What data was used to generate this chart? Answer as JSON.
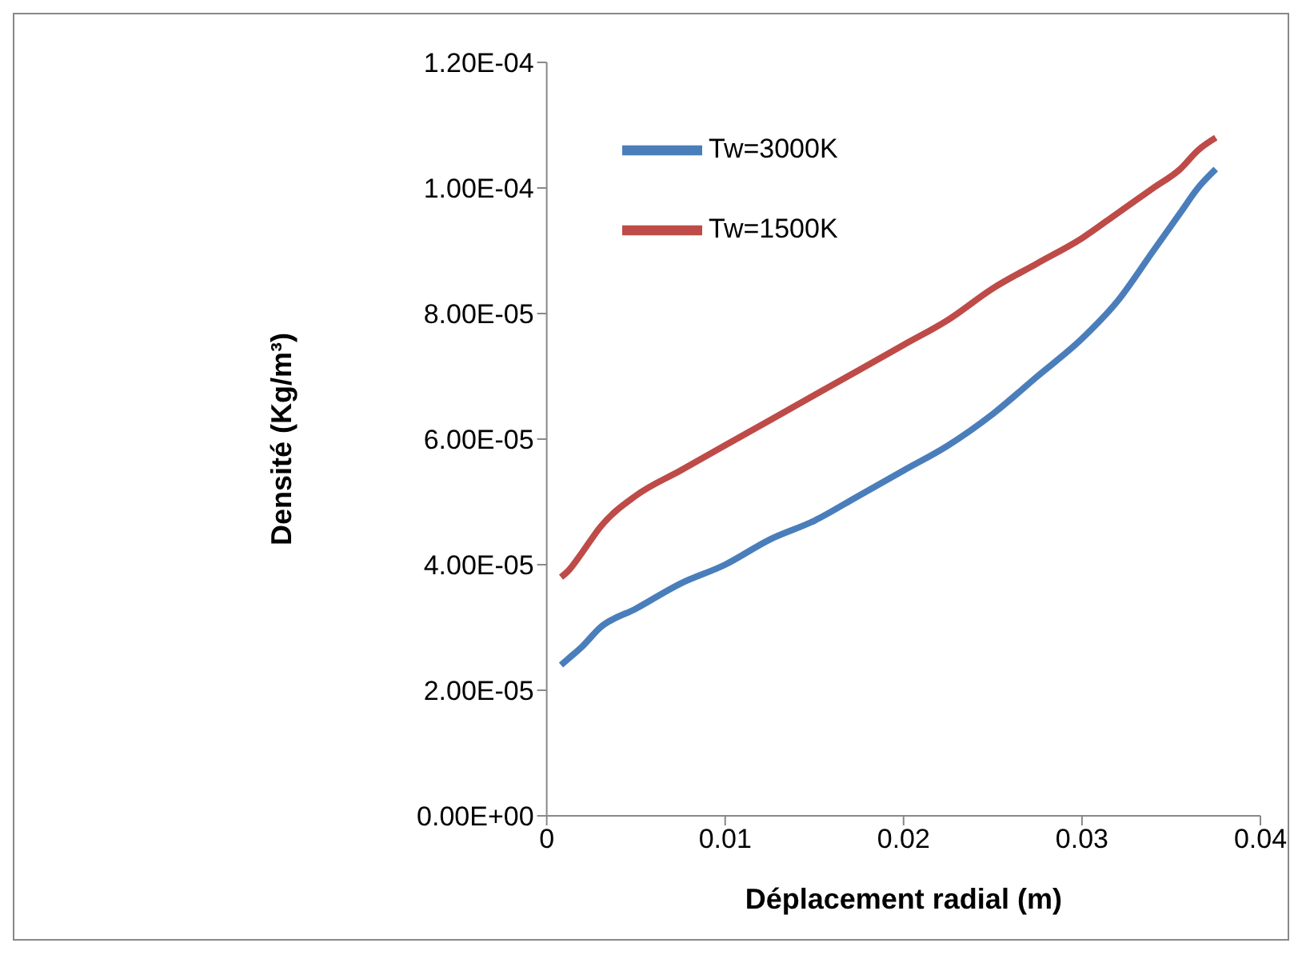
{
  "chart_data": {
    "type": "line",
    "xlabel": "Déplacement radial (m)",
    "ylabel": "Densité (Kg/m³)",
    "xlim": [
      0,
      0.04
    ],
    "xticks": [
      0,
      0.01,
      0.02,
      0.03,
      0.04
    ],
    "ylim": [
      0,
      0.00012
    ],
    "yticks": [
      {
        "value": 0,
        "label": "0.00E+00"
      },
      {
        "value": 2e-05,
        "label": "2.00E-05"
      },
      {
        "value": 4e-05,
        "label": "4.00E-05"
      },
      {
        "value": 6e-05,
        "label": "6.00E-05"
      },
      {
        "value": 8e-05,
        "label": "8.00E-05"
      },
      {
        "value": 0.0001,
        "label": "1.00E-04"
      },
      {
        "value": 0.00012,
        "label": "1.20E-04"
      }
    ],
    "grid": false,
    "legend": "top",
    "marker": "none",
    "line_style": "solid",
    "series": [
      {
        "name": "Tw=3000K",
        "color": "#4a7ebb",
        "x": [
          0.0008,
          0.0012,
          0.002,
          0.003,
          0.005,
          0.0075,
          0.01,
          0.0125,
          0.015,
          0.0175,
          0.02,
          0.0225,
          0.025,
          0.0275,
          0.03,
          0.032,
          0.034,
          0.0355,
          0.0365,
          0.0375
        ],
        "values": [
          2.4e-05,
          2.5e-05,
          2.7e-05,
          3e-05,
          3.3e-05,
          3.7e-05,
          4e-05,
          4.4e-05,
          4.7e-05,
          5.1e-05,
          5.5e-05,
          5.9e-05,
          6.4e-05,
          7e-05,
          7.6e-05,
          8.2e-05,
          9e-05,
          9.6e-05,
          0.0001,
          0.000103
        ]
      },
      {
        "name": "Tw=1500K",
        "color": "#be4b48",
        "x": [
          0.0008,
          0.0012,
          0.002,
          0.003,
          0.005,
          0.0075,
          0.01,
          0.0125,
          0.015,
          0.0175,
          0.02,
          0.0225,
          0.025,
          0.0275,
          0.03,
          0.032,
          0.034,
          0.0355,
          0.0365,
          0.0375
        ],
        "values": [
          3.8e-05,
          3.9e-05,
          4.2e-05,
          4.6e-05,
          5.1e-05,
          5.5e-05,
          5.9e-05,
          6.3e-05,
          6.7e-05,
          7.1e-05,
          7.5e-05,
          7.9e-05,
          8.4e-05,
          8.8e-05,
          9.2e-05,
          9.6e-05,
          0.0001,
          0.000103,
          0.000106,
          0.000108
        ]
      }
    ]
  }
}
